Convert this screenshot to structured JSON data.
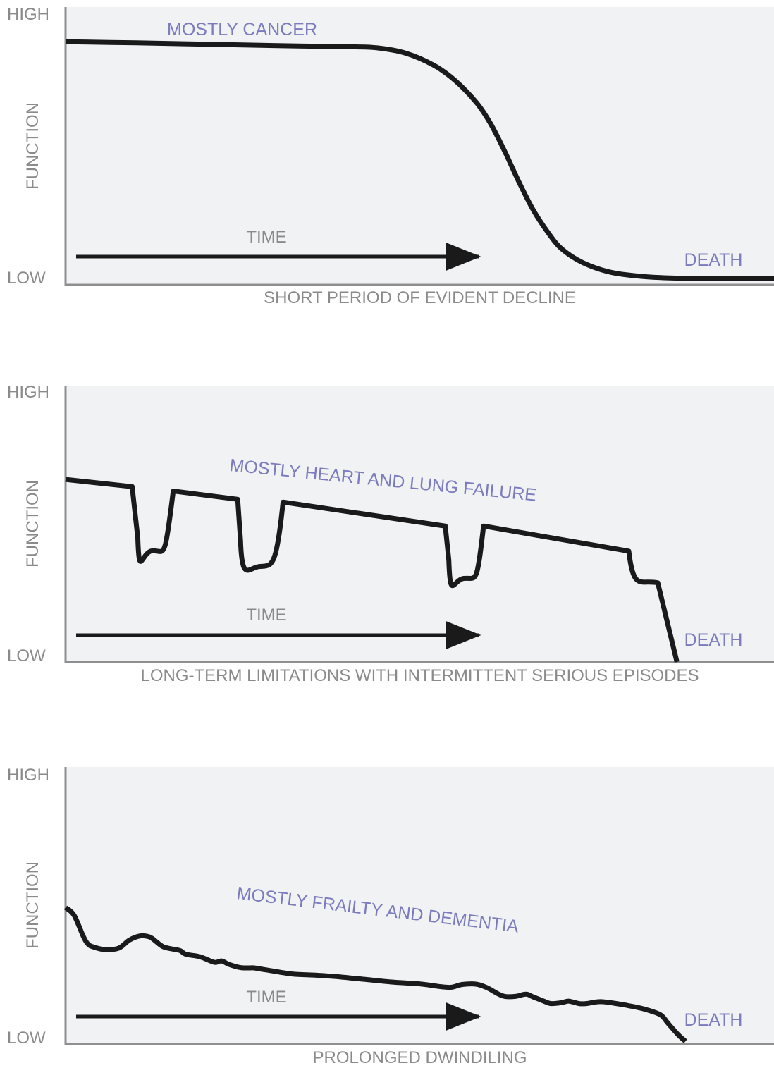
{
  "colors": {
    "panel_background": "#f1f2f4",
    "axis": "#8f8f8f",
    "curve": "#1a1a1a",
    "label_gray": "#8a8a8a",
    "annotation_purple": "#7b7bbd"
  },
  "chart_data": [
    {
      "type": "line",
      "ylabel": "FUNCTION",
      "y_high_label": "HIGH",
      "y_low_label": "LOW",
      "caption": "SHORT PERIOD OF EVIDENT DECLINE",
      "annotation": "MOSTLY CANCER",
      "time_label": "TIME",
      "end_label": "DEATH",
      "xlim": [
        0,
        100
      ],
      "ylim": [
        0,
        100
      ],
      "grid": false,
      "series": [
        {
          "x": [
            0,
            10,
            20,
            30,
            40,
            44,
            48,
            52,
            55,
            58,
            60,
            62,
            64,
            66,
            68,
            70,
            73,
            77,
            82,
            88,
            94,
            100
          ],
          "y": [
            87.5,
            87.1,
            86.6,
            86.1,
            85.7,
            85.3,
            83.4,
            79.0,
            73.5,
            65.6,
            58.0,
            48.0,
            37.0,
            27.0,
            19.2,
            13.0,
            8.0,
            4.5,
            2.9,
            2.3,
            2.2,
            2.2
          ],
          "shape": "smooth"
        }
      ]
    },
    {
      "type": "line",
      "ylabel": "FUNCTION",
      "y_high_label": "HIGH",
      "y_low_label": "LOW",
      "caption": "LONG-TERM LIMITATIONS WITH INTERMITTENT SERIOUS EPISODES",
      "annotation": "MOSTLY HEART AND LUNG FAILURE",
      "time_label": "TIME",
      "end_label": "DEATH",
      "xlim": [
        0,
        100
      ],
      "ylim": [
        0,
        100
      ],
      "grid": false,
      "series": [
        {
          "x": [
            0,
            9.4,
            10.2,
            12.2,
            14.2,
            15.2,
            24.3,
            24.7,
            27.3,
            30.0,
            30.7,
            53.6,
            54.1,
            56.2,
            58.3,
            59.0,
            79.5,
            80.2,
            83.6,
            86.3
          ],
          "y": [
            66.2,
            63.6,
            44.9,
            40.3,
            45.0,
            62.0,
            59.0,
            44.0,
            34.6,
            43.0,
            58.0,
            49.3,
            37.0,
            30.3,
            37.0,
            49.3,
            40.2,
            33.0,
            28.7,
            0
          ],
          "shape": "piecewise"
        }
      ]
    },
    {
      "type": "line",
      "ylabel": "FUNCTION",
      "y_high_label": "HIGH",
      "y_low_label": "LOW",
      "caption": "PROLONGED DWINDILING",
      "annotation": "MOSTLY FRAILTY AND DEMENTIA",
      "time_label": "TIME",
      "end_label": "DEATH",
      "xlim": [
        0,
        100
      ],
      "ylim": [
        0,
        100
      ],
      "grid": false,
      "series": [
        {
          "x": [
            0,
            1.2,
            2.5,
            3.2,
            4.0,
            5.5,
            7.5,
            9.0,
            10.5,
            11.8,
            12.5,
            13.8,
            15.5,
            16.2,
            17.0,
            19.0,
            21.0,
            22.0,
            23.0,
            24.0,
            25.0,
            26.5,
            27.5,
            29.0,
            32.0,
            35.0,
            38.0,
            42.0,
            46.0,
            50.0,
            53.0,
            54.5,
            56.0,
            58.0,
            59.5,
            61.0,
            62.0,
            63.5,
            65.0,
            66.0,
            67.5,
            68.5,
            70.0,
            71.0,
            72.5,
            73.5,
            75.5,
            78.0,
            80.0,
            82.0,
            84.0,
            85.0,
            86.5,
            87.5
          ],
          "y": [
            49.3,
            46.5,
            38.9,
            36.0,
            35.0,
            34.1,
            34.6,
            37.5,
            39.0,
            38.7,
            37.6,
            35.1,
            34.1,
            33.7,
            32.4,
            31.5,
            29.5,
            30.0,
            28.8,
            28.0,
            27.5,
            27.5,
            27.1,
            26.5,
            25.3,
            24.9,
            24.4,
            23.4,
            22.4,
            21.7,
            20.7,
            20.5,
            21.5,
            21.6,
            20.3,
            18.2,
            17.2,
            17.2,
            18.0,
            17.0,
            15.5,
            14.6,
            14.9,
            15.5,
            14.6,
            14.6,
            15.3,
            14.5,
            13.6,
            12.4,
            10.5,
            7.6,
            3.3,
            1.0
          ],
          "shape": "jagged"
        }
      ]
    }
  ]
}
